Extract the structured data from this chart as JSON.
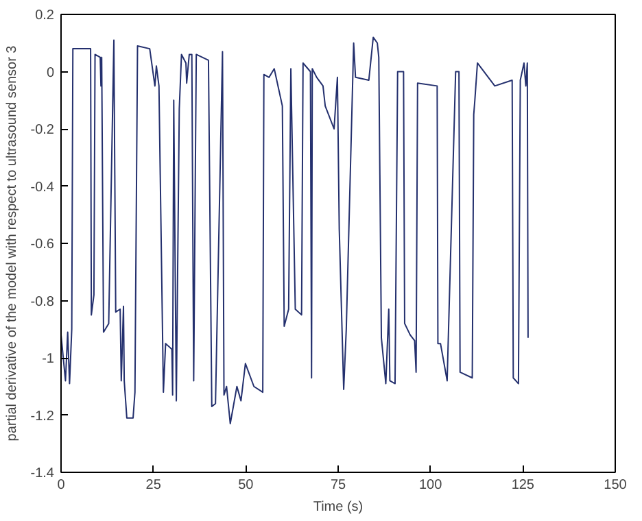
{
  "chart_data": {
    "type": "line",
    "xlabel": "Time (s)",
    "ylabel": "partial derivative of the model with respect to ultrasound sensor 3",
    "xlim": [
      0,
      150
    ],
    "ylim": [
      -1.4,
      0.2
    ],
    "xticks": [
      0,
      25,
      50,
      75,
      100,
      125,
      150
    ],
    "yticks": [
      -1.4,
      -1.2,
      -1,
      -0.8,
      -0.6,
      -0.4,
      -0.2,
      0,
      0.2
    ],
    "grid": false,
    "series": [
      {
        "color": "#24306e",
        "x": [
          0,
          1.2,
          1.8,
          2.3,
          2.9,
          3.2,
          8.0,
          8.2,
          8.9,
          9.2,
          10.6,
          10.8,
          11.0,
          11.5,
          12.9,
          14.3,
          14.8,
          16.0,
          16.3,
          16.9,
          17.1,
          17.8,
          19.5,
          20.0,
          20.7,
          24.0,
          25.4,
          25.8,
          26.5,
          27.7,
          28.3,
          30.0,
          30.2,
          30.5,
          31.2,
          32.0,
          32.6,
          33.8,
          34.0,
          34.7,
          35.4,
          35.9,
          36.6,
          39.9,
          40.8,
          41.8,
          43.7,
          44.1,
          44.8,
          45.8,
          47.6,
          48.7,
          49.9,
          52.2,
          54.6,
          54.9,
          56.3,
          57.7,
          59.9,
          60.4,
          61.6,
          62.2,
          63.4,
          65.1,
          65.5,
          67.5,
          67.8,
          68.0,
          69.2,
          70.9,
          71.5,
          73.9,
          74.8,
          75.3,
          76.5,
          77.2,
          79.2,
          79.7,
          83.3,
          84.5,
          85.6,
          86.0,
          86.7,
          87.9,
          88.7,
          89.0,
          90.4,
          91.1,
          92.7,
          93.0,
          94.5,
          95.7,
          96.1,
          96.5,
          101.8,
          102.0,
          102.7,
          104.5,
          106.8,
          107.7,
          108.0,
          111.3,
          111.7,
          112.0,
          112.7,
          117.4,
          122.1,
          122.4,
          123.8,
          124.3,
          125.3,
          125.8,
          126.2,
          126.4
        ],
        "values": [
          -0.92,
          -1.08,
          -0.91,
          -1.09,
          -0.9,
          0.08,
          0.08,
          -0.85,
          -0.78,
          0.06,
          0.05,
          -0.05,
          0.05,
          -0.91,
          -0.88,
          0.11,
          -0.84,
          -0.83,
          -1.08,
          -0.82,
          -1.08,
          -1.21,
          -1.21,
          -1.12,
          0.09,
          0.08,
          -0.05,
          0.02,
          -0.05,
          -1.12,
          -0.95,
          -0.97,
          -1.13,
          -0.1,
          -1.15,
          -0.13,
          0.06,
          0.03,
          -0.04,
          0.06,
          0.06,
          -1.08,
          0.06,
          0.04,
          -1.17,
          -1.16,
          0.07,
          -1.13,
          -1.1,
          -1.23,
          -1.1,
          -1.15,
          -1.02,
          -1.1,
          -1.12,
          -0.01,
          -0.02,
          0.01,
          -0.12,
          -0.89,
          -0.83,
          0.01,
          -0.83,
          -0.85,
          0.03,
          0.0,
          -1.07,
          0.01,
          -0.02,
          -0.05,
          -0.12,
          -0.2,
          -0.02,
          -0.55,
          -1.11,
          -0.9,
          0.1,
          -0.02,
          -0.03,
          0.12,
          0.1,
          0.05,
          -0.93,
          -1.09,
          -0.83,
          -1.08,
          -1.09,
          0.0,
          0.0,
          -0.88,
          -0.92,
          -0.94,
          -1.05,
          -0.04,
          -0.05,
          -0.95,
          -0.95,
          -1.08,
          0.0,
          0.0,
          -1.05,
          -1.07,
          -0.15,
          -0.1,
          0.03,
          -0.05,
          -0.03,
          -1.07,
          -1.09,
          -0.03,
          0.03,
          -0.05,
          0.03,
          -0.93
        ]
      }
    ]
  }
}
